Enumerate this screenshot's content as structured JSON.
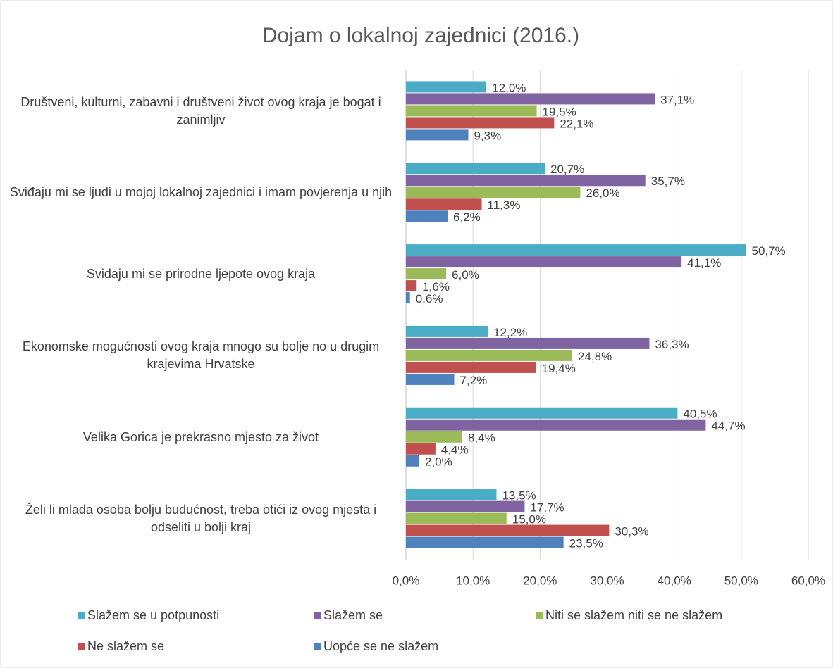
{
  "chart_data": {
    "type": "bar",
    "orientation": "horizontal",
    "title": "Dojam o lokalnoj zajednici (2016.)",
    "categories": [
      "Društveni, kulturni, zabavni i društveni život ovog kraja je bogat i zanimljiv",
      "Sviđaju mi se ljudi u mojoj lokalnoj zajednici i imam povjerenja u njih",
      "Sviđaju mi se prirodne ljepote ovog kraja",
      "Ekonomske mogućnosti ovog kraja mnogo su bolje no u drugim krajevima Hrvatske",
      "Velika Gorica je prekrasno mjesto za život",
      "Želi li mlada osoba bolju budućnost, treba otići iz ovog mjesta i odseliti u bolji kraj"
    ],
    "series": [
      {
        "name": "Slažem se u potpunosti",
        "color": "#4bacc6",
        "values": [
          12.0,
          20.7,
          50.7,
          12.2,
          40.5,
          13.5
        ],
        "value_labels": [
          "12,0%",
          "20,7%",
          "50,7%",
          "12,2%",
          "40,5%",
          "13,5%"
        ]
      },
      {
        "name": "Slažem se",
        "color": "#8064a2",
        "values": [
          37.1,
          35.7,
          41.1,
          36.3,
          44.7,
          17.7
        ],
        "value_labels": [
          "37,1%",
          "35,7%",
          "41,1%",
          "36,3%",
          "44,7%",
          "17,7%"
        ]
      },
      {
        "name": "Niti se slažem niti se ne slažem",
        "color": "#9bbb59",
        "values": [
          19.5,
          26.0,
          6.0,
          24.8,
          8.4,
          15.0
        ],
        "value_labels": [
          "19,5%",
          "26,0%",
          "6,0%",
          "24,8%",
          "8,4%",
          "15,0%"
        ]
      },
      {
        "name": "Ne slažem se",
        "color": "#c0504d",
        "values": [
          22.1,
          11.3,
          1.6,
          19.4,
          4.4,
          30.3
        ],
        "value_labels": [
          "22,1%",
          "11,3%",
          "1,6%",
          "19,4%",
          "4,4%",
          "30,3%"
        ]
      },
      {
        "name": "Uopće se ne slažem",
        "color": "#4f81bd",
        "values": [
          9.3,
          6.2,
          0.6,
          7.2,
          2.0,
          23.5
        ],
        "value_labels": [
          "9,3%",
          "6,2%",
          "0,6%",
          "7,2%",
          "2,0%",
          "23,5%"
        ]
      }
    ],
    "xlim": [
      0,
      60
    ],
    "xticks": [
      {
        "value": 0,
        "label": "0,0%"
      },
      {
        "value": 10,
        "label": "10,0%"
      },
      {
        "value": 20,
        "label": "20,0%"
      },
      {
        "value": 30,
        "label": "30,0%"
      },
      {
        "value": 40,
        "label": "40,0%"
      },
      {
        "value": 50,
        "label": "50,0%"
      },
      {
        "value": 60,
        "label": "60,0%"
      }
    ],
    "grid": true,
    "legend": "bottom"
  }
}
